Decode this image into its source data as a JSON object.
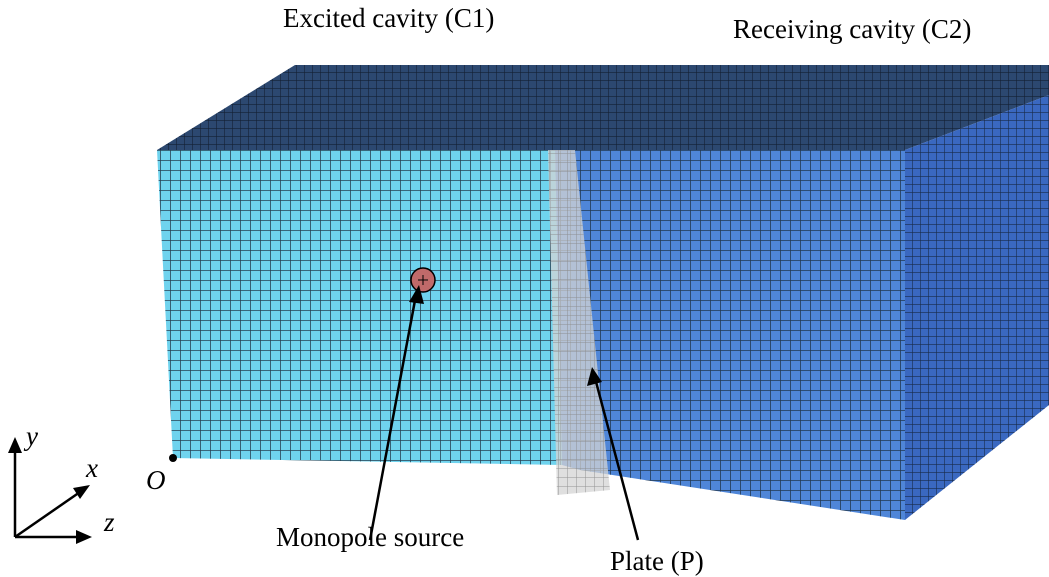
{
  "labels": {
    "excited_cavity": "Excited cavity (C1)",
    "receiving_cavity": "Receiving cavity (C2)",
    "monopole_source": "Monopole source",
    "plate": "Plate (P)"
  },
  "axes": {
    "y": "y",
    "x": "x",
    "z": "z",
    "origin": "O"
  },
  "colors": {
    "excited_cavity_front": "#6fd3ee",
    "receiving_cavity_front": "#4f86d8",
    "top_face": "#2c4870",
    "right_face": "#3a68c0",
    "mesh_lines": "#1a2a3a",
    "plate": "#b8b8b8",
    "source_marker": "#c06a6a"
  }
}
